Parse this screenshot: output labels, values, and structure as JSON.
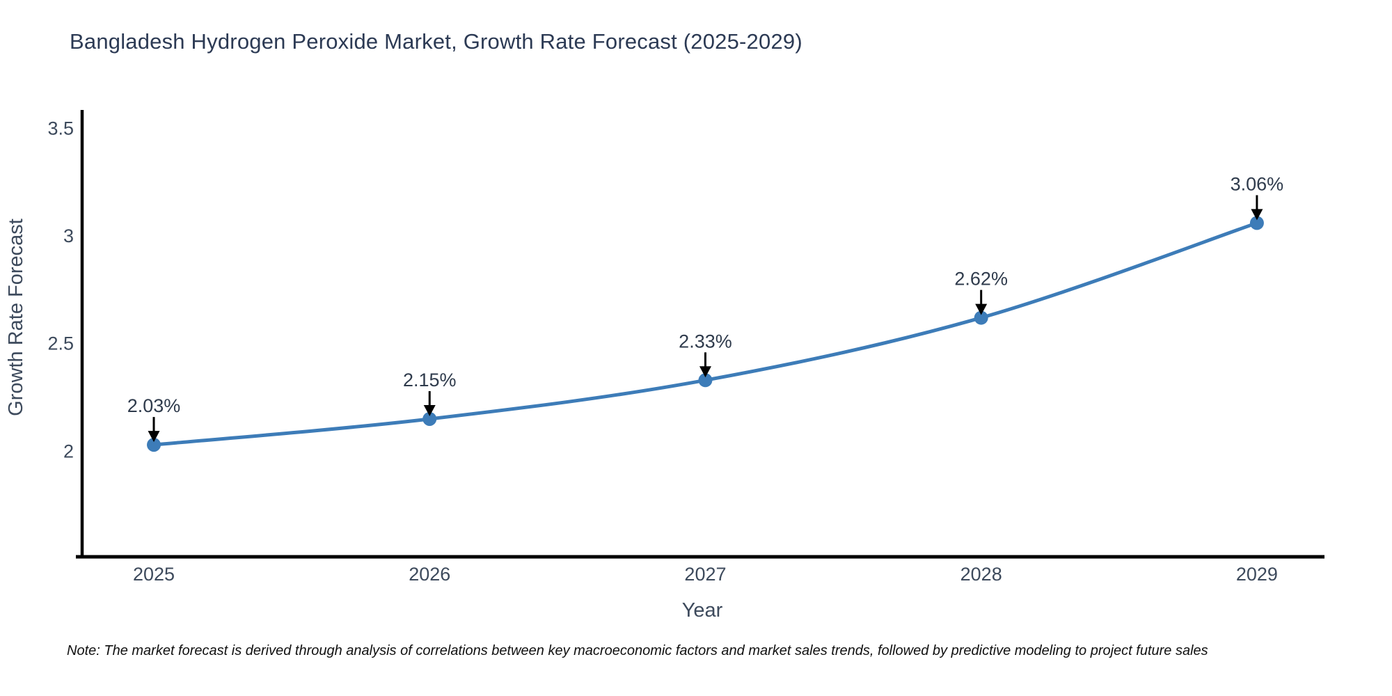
{
  "title": "Bangladesh Hydrogen Peroxide Market, Growth Rate Forecast (2025-2029)",
  "note": "Note: The market forecast is derived through analysis of correlations between key macroeconomic factors and market sales trends, followed by predictive modeling to project future sales",
  "chart_data": {
    "type": "line",
    "x": [
      2025,
      2026,
      2027,
      2028,
      2029
    ],
    "values": [
      2.03,
      2.15,
      2.33,
      2.62,
      3.06
    ],
    "point_labels": [
      "2.03%",
      "2.15%",
      "2.33%",
      "2.62%",
      "3.06%"
    ],
    "series_name": "Growth Rate Forecast",
    "title": "Bangladesh Hydrogen Peroxide Market, Growth Rate Forecast (2025-2029)",
    "xlabel": "Year",
    "ylabel": "Growth Rate Forecast",
    "yticks": [
      2,
      2.5,
      3,
      3.5
    ],
    "ytick_labels": [
      "2",
      "2.5",
      "3",
      "3.5"
    ],
    "xtick_labels": [
      "2025",
      "2026",
      "2027",
      "2028",
      "2029"
    ],
    "xlim": [
      2024.74,
      2029.24
    ],
    "ylim": [
      1.51,
      3.585
    ],
    "grid": false,
    "legend": "none",
    "line_style": "spline",
    "marker": "circle",
    "annotations": "value labels with downward arrows above each point",
    "colors": {
      "line": "#3d7cb8",
      "marker": "#3d7cb8",
      "axis": "#000000",
      "arrow": "#000000",
      "tick_text": "#3d4a5c",
      "annotation_text": "#2f3b4c",
      "title_text": "#2c3a54",
      "note_text": "#111111",
      "background": "#ffffff"
    }
  }
}
